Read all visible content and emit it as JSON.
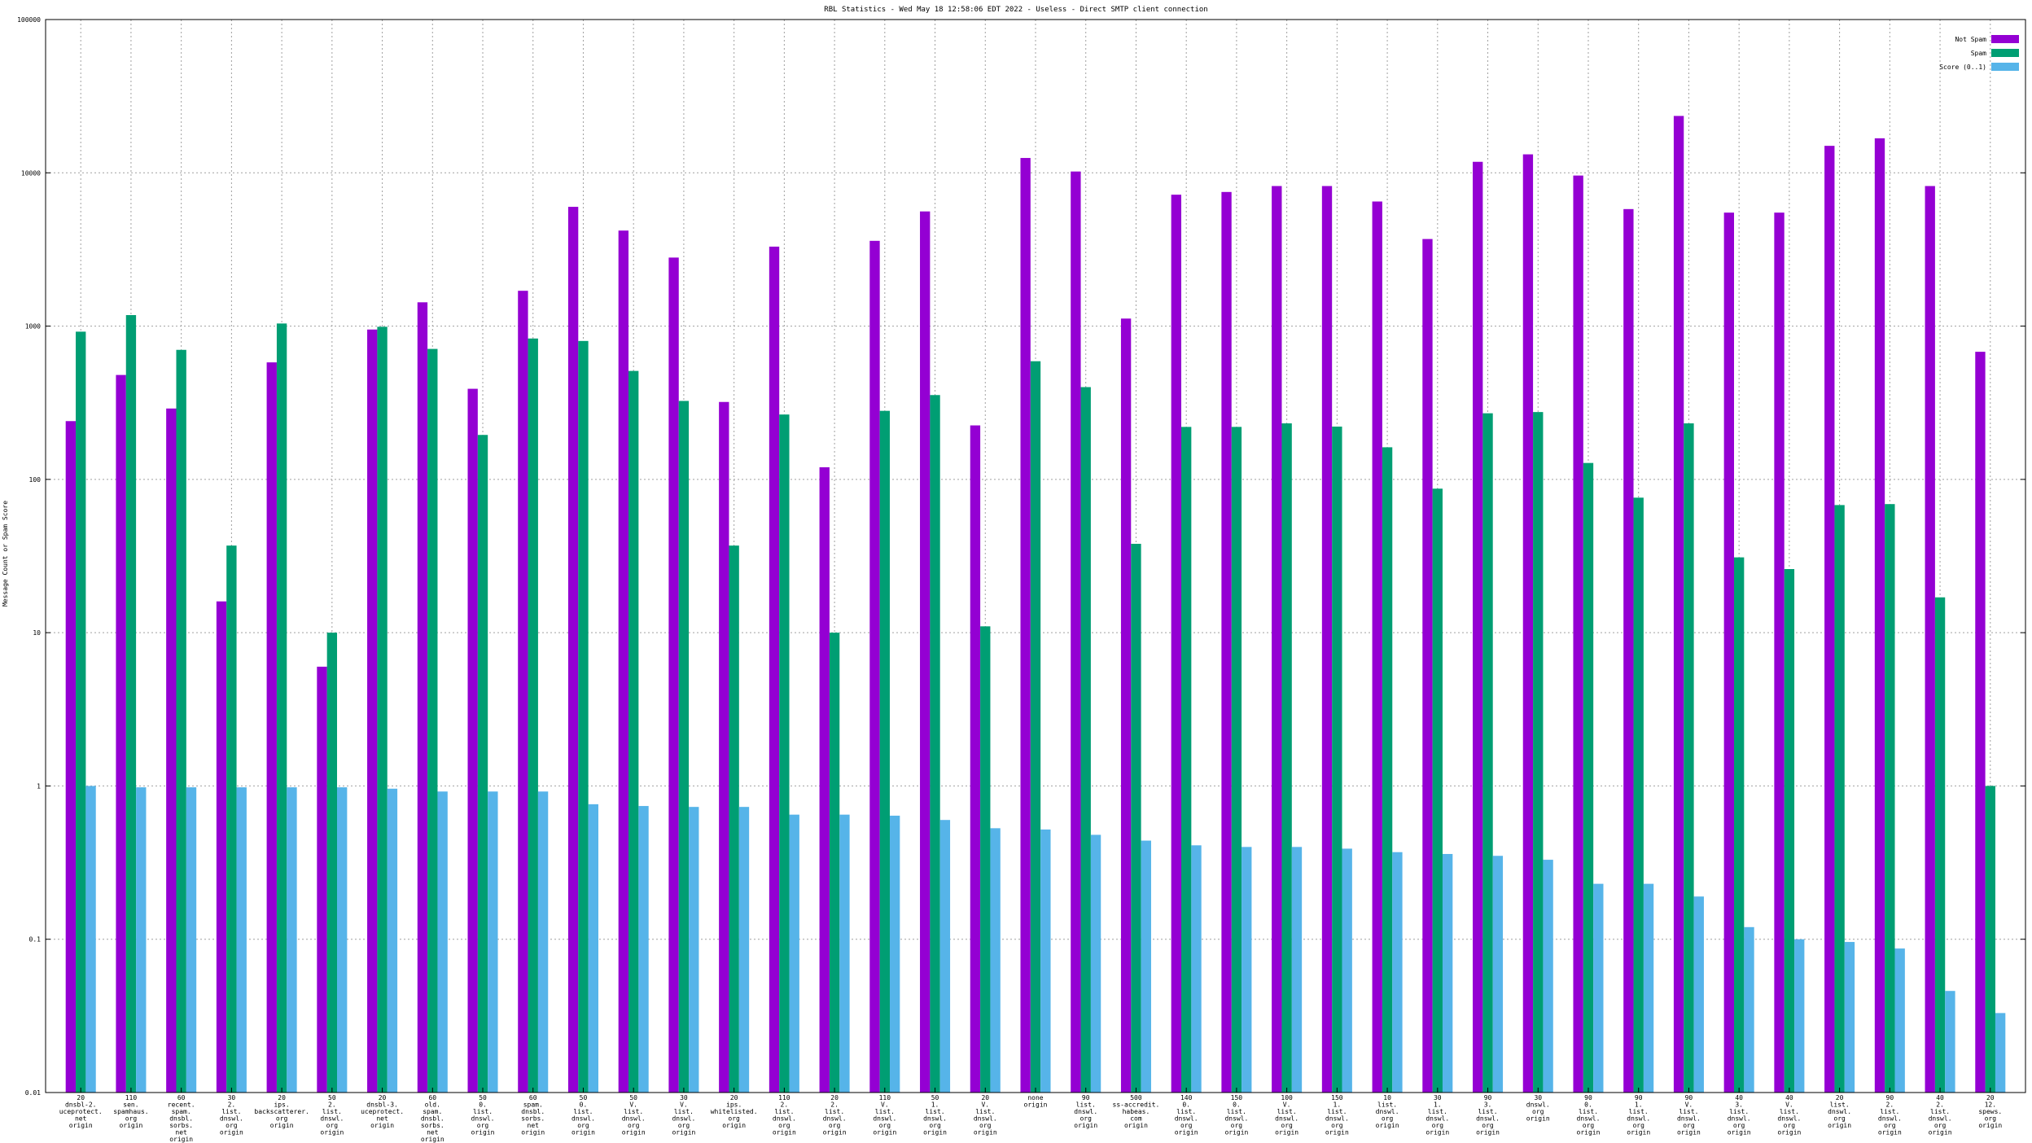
{
  "chart_data": {
    "type": "bar",
    "title": "RBL Statistics - Wed May 18 12:58:06 EDT 2022 - Useless - Direct SMTP client connection",
    "xlabel": "",
    "ylabel": "Message Count or Spam Score",
    "yscale": "log",
    "ylim": [
      0.01,
      100000
    ],
    "yticks": [
      "0.01",
      "0.1",
      "1",
      "10",
      "100",
      "1000",
      "10000",
      "100000"
    ],
    "grid": true,
    "legend_position": "top-right",
    "categories": [
      "20\ndnsbl-2.\nuceprotect.\nnet\norigin",
      "110\nsen.\nspamhaus.\norg\norigin",
      "60\nrecent.\nspam.\ndnsbl.\nsorbs.\nnet\norigin",
      "30\n2.\nlist.\ndnswl.\norg\norigin",
      "20\nips.\nbackscatterer.\norg\norigin",
      "50\n2.\nlist.\ndnswl.\norg\norigin",
      "20\ndnsbl-3.\nuceprotect.\nnet\norigin",
      "60\nold.\nspam.\ndnsbl.\nsorbs.\nnet\norigin",
      "50\n0.\nlist.\ndnswl.\norg\norigin",
      "60\nspam.\ndnsbl.\nsorbs.\nnet\norigin",
      "50\n0.\nlist.\ndnswl.\norg\norigin",
      "50\nV.\nlist.\ndnswl.\norg\norigin",
      "30\nV.\nlist.\ndnswl.\norg\norigin",
      "20\nips.\nwhitelisted.\norg\norigin",
      "110\n2.\nlist.\ndnswl.\norg\norigin",
      "20\n2.\nlist.\ndnswl.\norg\norigin",
      "110\nV.\nlist.\ndnswl.\norg\norigin",
      "50\n1.\nlist.\ndnswl.\norg\norigin",
      "20\nV.\nlist.\ndnswl.\norg\norigin",
      "none\norigin",
      "90\nlist.\ndnswl.\norg\norigin",
      "500\nss-accredit.\nhabeas.\ncom\norigin",
      "140\n0.\nlist.\ndnswl.\norg\norigin",
      "150\n0.\nlist.\ndnswl.\norg\norigin",
      "100\nV.\nlist.\ndnswl.\norg\norigin",
      "150\n1.\nlist.\ndnswl.\norg\norigin",
      "10\nlist.\ndnswl.\norg\norigin",
      "30\n1.\nlist.\ndnswl.\norg\norigin",
      "90\n3.\nlist.\ndnswl.\norg\norigin",
      "30\ndnswl.\norg\norigin",
      "90\n0.\nlist.\ndnswl.\norg\norigin",
      "90\n1.\nlist.\ndnswl.\norg\norigin",
      "90\nV.\nlist.\ndnswl.\norg\norigin",
      "40\n3.\nlist.\ndnswl.\norg\norigin",
      "40\nV.\nlist.\ndnswl.\norg\norigin",
      "20\nlist.\ndnswl.\norg\norigin",
      "90\n2.\nlist.\ndnswl.\norg\norigin",
      "40\n2.\nlist.\ndnswl.\norg\norigin",
      "20\n12.\nspews.\norg\norigin"
    ],
    "series": [
      {
        "name": "Not Spam",
        "color": "#9400d3",
        "values": [
          240,
          480,
          290,
          16,
          580,
          6,
          950,
          1430,
          390,
          1700,
          6000,
          4200,
          2800,
          320,
          3300,
          120,
          3600,
          5600,
          225,
          12500,
          10200,
          1120,
          7200,
          7500,
          8200,
          8200,
          6500,
          3700,
          11800,
          13200,
          9600,
          5800,
          23500,
          5500,
          5500,
          15000,
          16800,
          8200,
          680
        ]
      },
      {
        "name": "Spam",
        "color": "#009e73",
        "values": [
          920,
          1180,
          700,
          37,
          1040,
          10,
          990,
          710,
          195,
          830,
          800,
          510,
          325,
          37,
          265,
          10,
          280,
          355,
          11,
          590,
          400,
          38,
          220,
          220,
          232,
          221,
          162,
          87,
          270,
          275,
          128,
          76,
          232,
          31,
          26,
          68,
          69,
          17,
          1
        ]
      },
      {
        "name": "Score (0..1)",
        "color": "#56b4e9",
        "values": [
          1.0,
          0.98,
          0.98,
          0.98,
          0.98,
          0.98,
          0.96,
          0.92,
          0.92,
          0.92,
          0.76,
          0.74,
          0.73,
          0.73,
          0.65,
          0.65,
          0.64,
          0.6,
          0.53,
          0.52,
          0.48,
          0.44,
          0.41,
          0.4,
          0.4,
          0.39,
          0.37,
          0.36,
          0.35,
          0.33,
          0.23,
          0.23,
          0.19,
          0.12,
          0.1,
          0.096,
          0.087,
          0.046,
          0.033
        ]
      }
    ]
  }
}
